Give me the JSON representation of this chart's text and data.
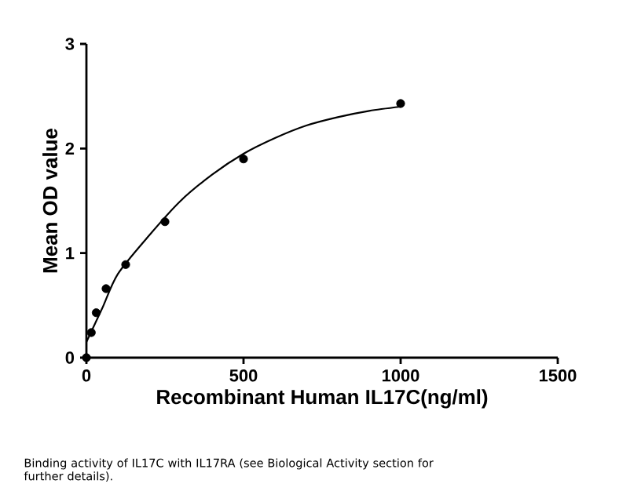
{
  "chart_data": {
    "type": "scatter",
    "xlabel": "Recombinant Human IL17C(ng/ml)",
    "ylabel": "Mean OD value",
    "annotations": [
      "Binding activity of IL17C with IL17RA (see Biological Activity section for further details)."
    ],
    "xlim": [
      0,
      1500
    ],
    "ylim": [
      0,
      3
    ],
    "xticks": [
      0,
      500,
      1000,
      1500
    ],
    "yticks": [
      0,
      1,
      2,
      3
    ],
    "grid": false,
    "series": [
      {
        "color": "#000000",
        "marker": "circle",
        "x": [
          0,
          15.6,
          31.25,
          62.5,
          125,
          250,
          500,
          1000
        ],
        "values": [
          0,
          0.24,
          0.43,
          0.66,
          0.89,
          1.3,
          1.9,
          2.43
        ]
      },
      {
        "type": "line",
        "color": "#000000",
        "marker": "none",
        "line_style": "solid",
        "x": [
          0,
          50,
          100,
          200,
          300,
          400,
          500,
          600,
          700,
          800,
          900,
          1000
        ],
        "values": [
          0.15,
          0.47,
          0.8,
          1.17,
          1.5,
          1.75,
          1.95,
          2.1,
          2.22,
          2.3,
          2.36,
          2.4
        ]
      }
    ]
  }
}
